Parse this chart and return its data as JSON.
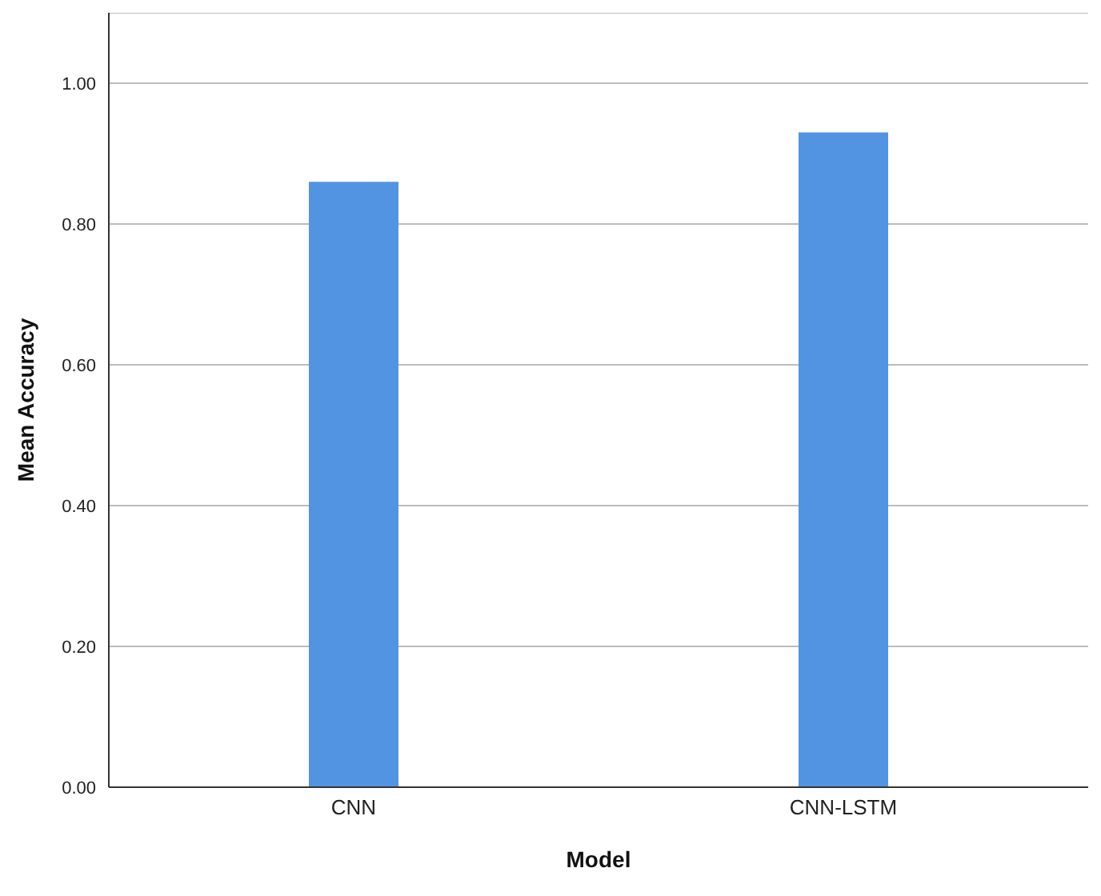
{
  "chart_data": {
    "type": "bar",
    "xlabel": "Model",
    "ylabel": "Mean Accuracy",
    "categories": [
      "CNN",
      "CNN-LSTM"
    ],
    "values": [
      0.86,
      0.93
    ],
    "color": "#5294e2",
    "ylim": [
      0,
      1.1
    ],
    "yticks": [
      {
        "value": 0,
        "label": "0.00"
      },
      {
        "value": 0.2,
        "label": "0.20"
      },
      {
        "value": 0.4,
        "label": "0.40"
      },
      {
        "value": 0.6,
        "label": "0.60"
      },
      {
        "value": 0.8,
        "label": "0.80"
      },
      {
        "value": 1.0,
        "label": "1.00"
      }
    ],
    "grid": "y",
    "legend": false
  }
}
